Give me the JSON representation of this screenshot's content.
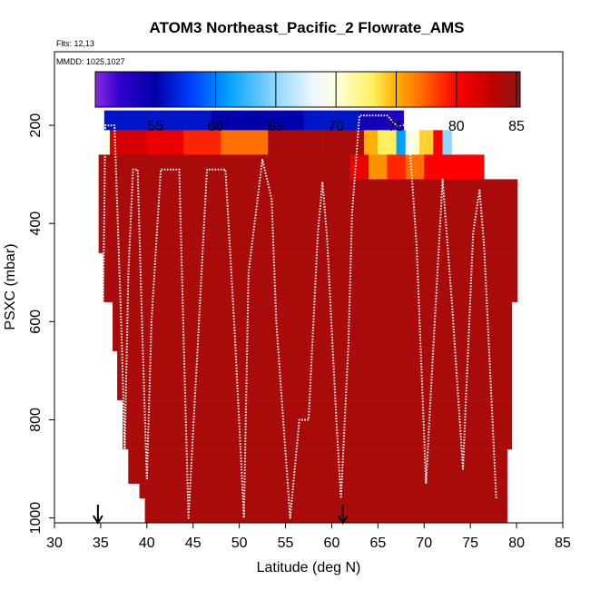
{
  "chart_data": {
    "type": "heatmap",
    "title": "ATOM3 Northeast_Pacific_2 Flowrate_AMS",
    "annotations": {
      "flights": "Flts: 12,13",
      "dates": "MMDD: 1025,1027"
    },
    "xlabel": "Latitude (deg N)",
    "ylabel": "PSXC (mbar)",
    "xlim": [
      30,
      85
    ],
    "ylim": [
      1010,
      50
    ],
    "y_reversed": true,
    "x_ticks": [
      30,
      35,
      40,
      45,
      50,
      55,
      60,
      65,
      70,
      75,
      80,
      85
    ],
    "y_ticks": [
      200,
      400,
      600,
      800,
      1000
    ],
    "colorbar": {
      "range": [
        50,
        85.3
      ],
      "ticks": [
        55,
        60,
        65,
        70,
        75,
        80,
        85
      ],
      "stops": [
        {
          "v": 50,
          "c": "#8a2be2"
        },
        {
          "v": 52,
          "c": "#3300cc"
        },
        {
          "v": 55,
          "c": "#0000aa"
        },
        {
          "v": 58,
          "c": "#0040ff"
        },
        {
          "v": 61,
          "c": "#00a0ff"
        },
        {
          "v": 65,
          "c": "#90d8ff"
        },
        {
          "v": 68,
          "c": "#eaf6ff"
        },
        {
          "v": 70,
          "c": "#ffffe0"
        },
        {
          "v": 73,
          "c": "#fff060"
        },
        {
          "v": 75,
          "c": "#ffb000"
        },
        {
          "v": 77,
          "c": "#ff7000"
        },
        {
          "v": 80,
          "c": "#ff0000"
        },
        {
          "v": 83,
          "c": "#c00000"
        },
        {
          "v": 85.3,
          "c": "#8b1a1a"
        }
      ]
    },
    "marker_arrows_lat": [
      34.7,
      61.2
    ],
    "cells": [
      {
        "lat0": 35.4,
        "lat1": 47.0,
        "p0": 170,
        "p1": 210,
        "value": 56
      },
      {
        "lat0": 47.0,
        "lat1": 57.0,
        "p0": 170,
        "p1": 210,
        "value": 55
      },
      {
        "lat0": 57.0,
        "lat1": 63.0,
        "p0": 170,
        "p1": 210,
        "value": 56
      },
      {
        "lat0": 63.0,
        "lat1": 66.0,
        "p0": 170,
        "p1": 210,
        "value": 54
      },
      {
        "lat0": 66.0,
        "lat1": 67.8,
        "p0": 170,
        "p1": 210,
        "value": 53
      },
      {
        "lat0": 35.4,
        "lat1": 36.0,
        "p0": 210,
        "p1": 260,
        "value": 70
      },
      {
        "lat0": 36.0,
        "lat1": 40.0,
        "p0": 210,
        "p1": 260,
        "value": 82
      },
      {
        "lat0": 40.0,
        "lat1": 44.0,
        "p0": 210,
        "p1": 260,
        "value": 81
      },
      {
        "lat0": 44.0,
        "lat1": 48.0,
        "p0": 210,
        "p1": 260,
        "value": 79
      },
      {
        "lat0": 48.0,
        "lat1": 53.1,
        "p0": 210,
        "p1": 260,
        "value": 77
      },
      {
        "lat0": 53.1,
        "lat1": 59.0,
        "p0": 210,
        "p1": 260,
        "value": 84
      },
      {
        "lat0": 59.0,
        "lat1": 63.5,
        "p0": 210,
        "p1": 260,
        "value": 84
      },
      {
        "lat0": 63.5,
        "lat1": 65.0,
        "p0": 210,
        "p1": 260,
        "value": 75
      },
      {
        "lat0": 65.0,
        "lat1": 67.0,
        "p0": 210,
        "p1": 260,
        "value": 73
      },
      {
        "lat0": 67.0,
        "lat1": 68.0,
        "p0": 210,
        "p1": 260,
        "value": 61
      },
      {
        "lat0": 68.0,
        "lat1": 69.5,
        "p0": 210,
        "p1": 260,
        "value": 70
      },
      {
        "lat0": 69.5,
        "lat1": 71.0,
        "p0": 210,
        "p1": 260,
        "value": 74
      },
      {
        "lat0": 71.0,
        "lat1": 72.0,
        "p0": 210,
        "p1": 260,
        "value": 80
      },
      {
        "lat0": 72.0,
        "lat1": 73.0,
        "p0": 210,
        "p1": 260,
        "value": 65
      },
      {
        "lat0": 34.8,
        "lat1": 62.0,
        "p0": 260,
        "p1": 310,
        "value": 84
      },
      {
        "lat0": 62.0,
        "lat1": 64.0,
        "p0": 260,
        "p1": 310,
        "value": 81
      },
      {
        "lat0": 64.0,
        "lat1": 66.0,
        "p0": 260,
        "p1": 310,
        "value": 76
      },
      {
        "lat0": 66.0,
        "lat1": 68.0,
        "p0": 260,
        "p1": 310,
        "value": 79
      },
      {
        "lat0": 68.0,
        "lat1": 70.0,
        "p0": 260,
        "p1": 310,
        "value": 77
      },
      {
        "lat0": 70.0,
        "lat1": 76.5,
        "p0": 260,
        "p1": 310,
        "value": 80
      },
      {
        "lat0": 34.8,
        "lat1": 80.1,
        "p0": 310,
        "p1": 460,
        "value": 84
      },
      {
        "lat0": 35.3,
        "lat1": 80.1,
        "p0": 460,
        "p1": 560,
        "value": 84
      },
      {
        "lat0": 36.3,
        "lat1": 79.5,
        "p0": 560,
        "p1": 660,
        "value": 84
      },
      {
        "lat0": 36.8,
        "lat1": 79.5,
        "p0": 660,
        "p1": 760,
        "value": 84
      },
      {
        "lat0": 37.4,
        "lat1": 79.5,
        "p0": 760,
        "p1": 860,
        "value": 84
      },
      {
        "lat0": 38.0,
        "lat1": 79.0,
        "p0": 860,
        "p1": 930,
        "value": 84
      },
      {
        "lat0": 39.2,
        "lat1": 79.0,
        "p0": 930,
        "p1": 960,
        "value": 84
      },
      {
        "lat0": 39.8,
        "lat1": 79.0,
        "p0": 960,
        "p1": 1010,
        "value": 84
      }
    ],
    "flight_track": [
      [
        35.0,
        1000
      ],
      [
        35.5,
        200
      ],
      [
        36.5,
        200
      ],
      [
        37.3,
        650
      ],
      [
        37.6,
        860
      ],
      [
        38.0,
        500
      ],
      [
        38.5,
        290
      ],
      [
        39.0,
        290
      ],
      [
        39.5,
        620
      ],
      [
        40.0,
        920
      ],
      [
        40.5,
        600
      ],
      [
        41.5,
        290
      ],
      [
        43.5,
        290
      ],
      [
        44.0,
        650
      ],
      [
        44.5,
        1000
      ],
      [
        45.5,
        650
      ],
      [
        46.5,
        290
      ],
      [
        48.5,
        290
      ],
      [
        49.5,
        620
      ],
      [
        50.5,
        1000
      ],
      [
        51.0,
        500
      ],
      [
        52.5,
        270
      ],
      [
        53.5,
        350
      ],
      [
        54.0,
        600
      ],
      [
        55.5,
        1000
      ],
      [
        56.5,
        800
      ],
      [
        57.5,
        800
      ],
      [
        58.5,
        420
      ],
      [
        59.0,
        315
      ],
      [
        59.5,
        430
      ],
      [
        60.5,
        800
      ],
      [
        61.0,
        960
      ],
      [
        61.8,
        650
      ],
      [
        62.2,
        380
      ],
      [
        63.0,
        180
      ],
      [
        66.0,
        180
      ],
      [
        67.0,
        200
      ],
      [
        68.3,
        200
      ],
      [
        69.2,
        450
      ],
      [
        70.2,
        930
      ],
      [
        71.0,
        650
      ],
      [
        72.0,
        310
      ],
      [
        73.0,
        560
      ],
      [
        74.2,
        900
      ],
      [
        75.3,
        420
      ],
      [
        76.0,
        330
      ],
      [
        76.5,
        450
      ],
      [
        77.8,
        960
      ]
    ]
  }
}
